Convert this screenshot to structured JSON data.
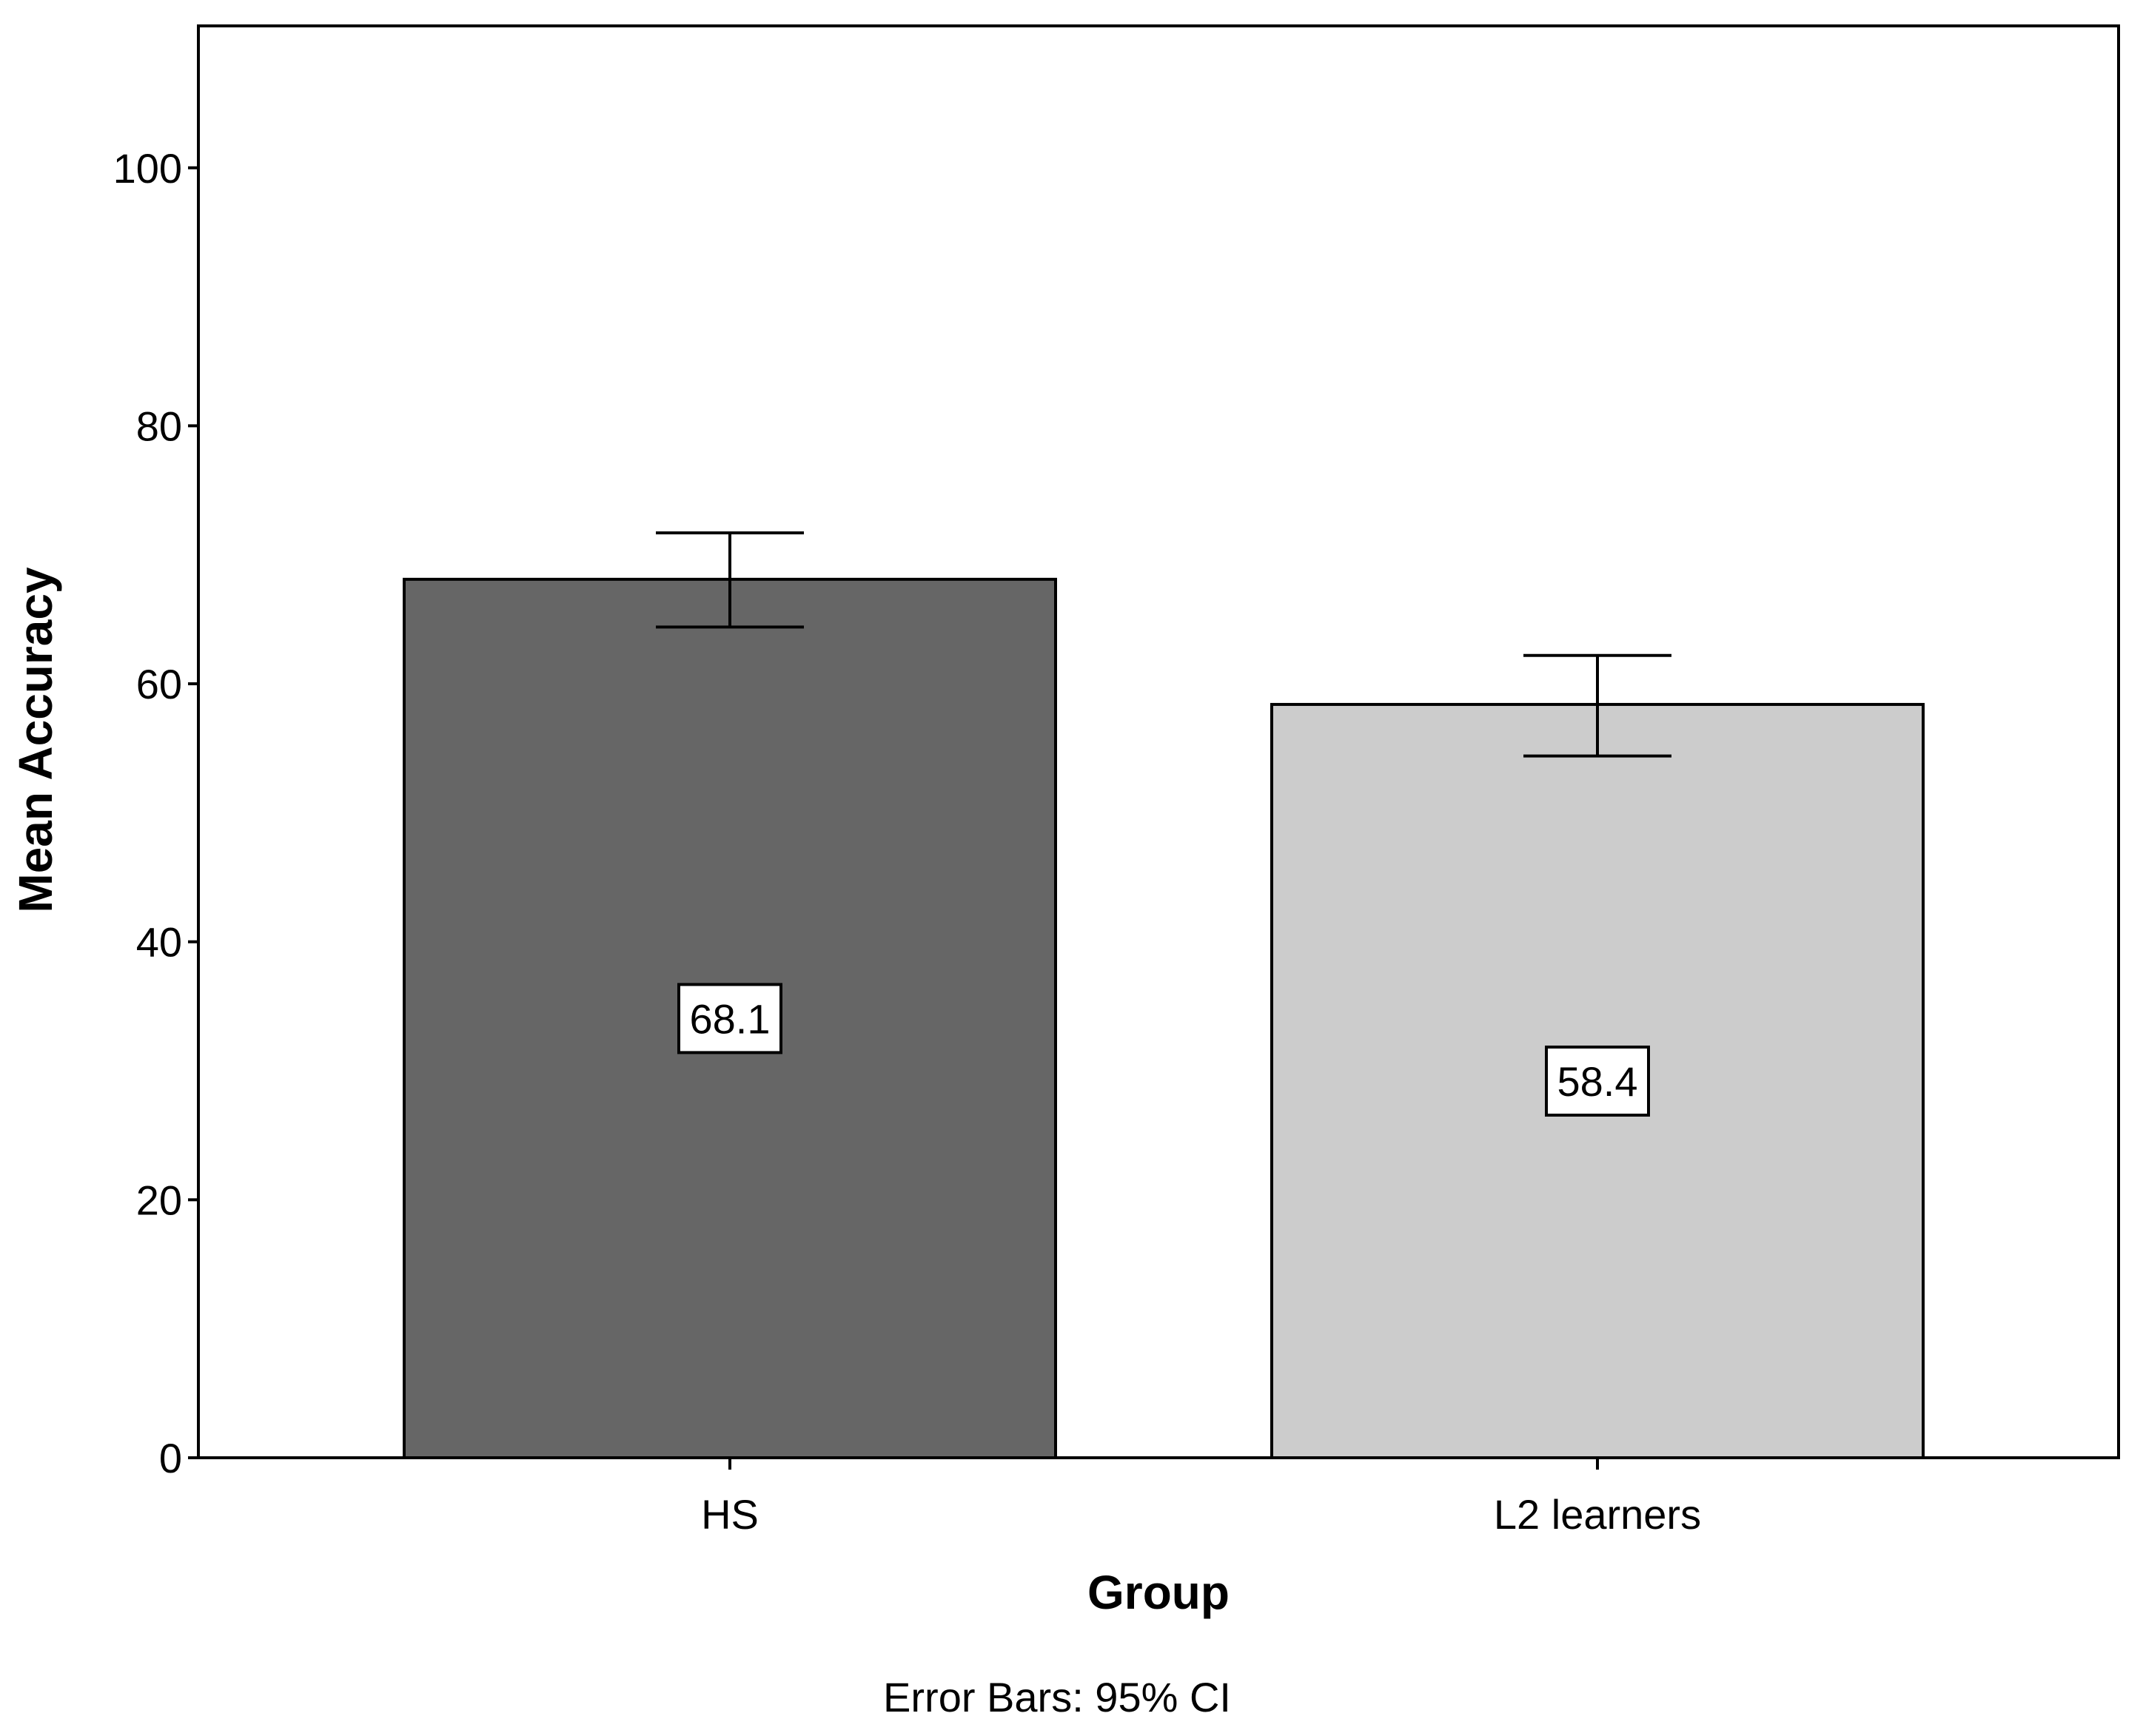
{
  "chart_data": {
    "type": "bar",
    "categories": [
      "HS",
      "L2 learners"
    ],
    "values": [
      68.1,
      58.4
    ],
    "value_labels": [
      "68.1",
      "58.4"
    ],
    "error_bars": {
      "lower": [
        64.4,
        54.4
      ],
      "upper": [
        71.7,
        62.2
      ]
    },
    "bar_colors": [
      "#666666",
      "#cccccc"
    ],
    "xlabel": "Group",
    "ylabel": "Mean Accuracy",
    "ylim": [
      0,
      111
    ],
    "yticks": [
      0,
      20,
      40,
      60,
      80,
      100
    ],
    "ytick_labels": [
      "0",
      "20",
      "40",
      "60",
      "80",
      "100"
    ],
    "grid": false,
    "legend": "none",
    "footnote": "Error Bars: 95% CI"
  }
}
